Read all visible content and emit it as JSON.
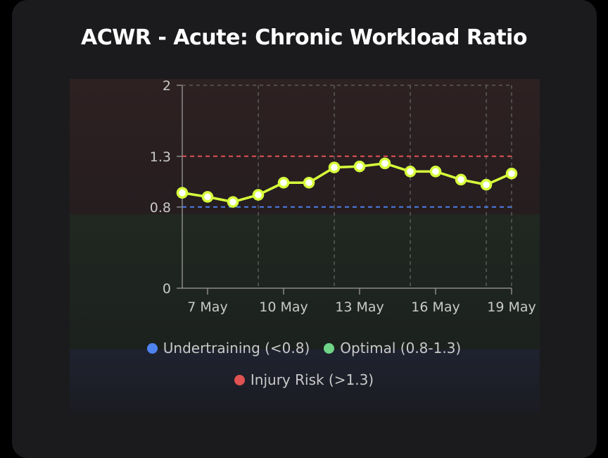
{
  "title": "ACWR - Acute: Chronic Workload Ratio",
  "chart_data": {
    "type": "line",
    "title": "ACWR - Acute: Chronic Workload Ratio",
    "x": [
      "6 May",
      "7 May",
      "8 May",
      "9 May",
      "10 May",
      "11 May",
      "12 May",
      "13 May",
      "14 May",
      "15 May",
      "16 May",
      "17 May",
      "18 May",
      "19 May"
    ],
    "x_tick_labels": [
      "7 May",
      "10 May",
      "13 May",
      "16 May",
      "19 May"
    ],
    "y_ticks": [
      {
        "value": 0,
        "label": "0"
      },
      {
        "value": 0.8,
        "label": "0.8"
      },
      {
        "value": 1.3,
        "label": "1.3"
      },
      {
        "value": 2,
        "label": "2"
      }
    ],
    "ylim": [
      0,
      2
    ],
    "series": [
      {
        "values": [
          0.94,
          0.9,
          0.85,
          0.92,
          1.04,
          1.04,
          1.19,
          1.2,
          1.23,
          1.15,
          1.15,
          1.07,
          1.02,
          1.13
        ],
        "color": "#d7ff3a"
      }
    ],
    "thresholds": [
      {
        "value": 0.8,
        "color": "#4d7de8"
      },
      {
        "value": 1.3,
        "color": "#e05252"
      }
    ],
    "grid": true,
    "legend_position": "bottom"
  },
  "legend": [
    {
      "label": "Undertraining (<0.8)",
      "color": "#4f83f0"
    },
    {
      "label": "Optimal (0.8-1.3)",
      "color": "#6fd487"
    },
    {
      "label": "Injury Risk (>1.3)",
      "color": "#e05252"
    }
  ],
  "colors": {
    "background": "#000000",
    "card": "#1b1b1d",
    "line": "#d7ff3a",
    "band_risk": "#2c2022",
    "band_optimal": "#1f2721",
    "band_under": "#1e2029"
  }
}
